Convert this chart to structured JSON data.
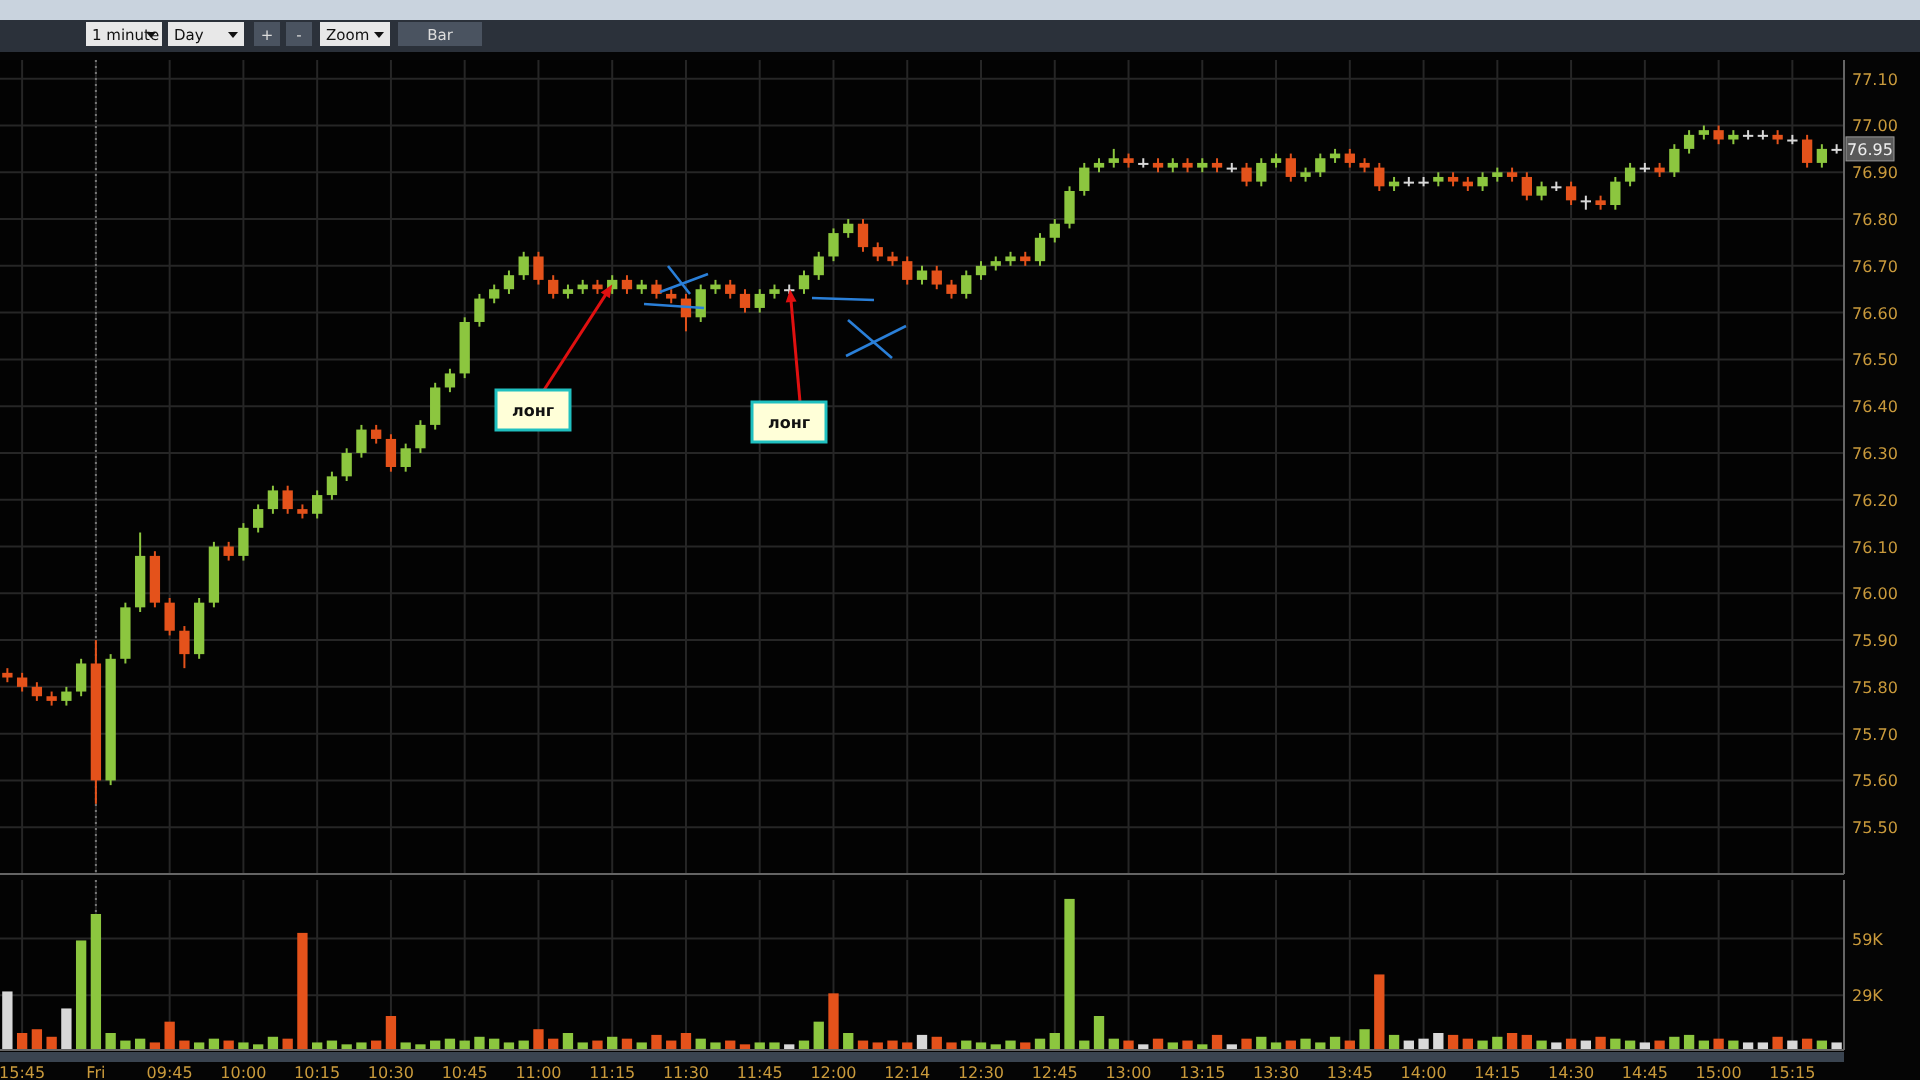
{
  "chart_data": [
    {
      "type": "candlestick",
      "tick_labels": "y",
      "grid": true,
      "categories": [
        null,
        "15:45",
        null,
        null,
        null,
        null,
        "Fri",
        null,
        null,
        null,
        null,
        "09:45",
        null,
        null,
        null,
        null,
        "10:00",
        null,
        null,
        null,
        null,
        "10:15",
        null,
        null,
        null,
        null,
        "10:30",
        null,
        null,
        null,
        null,
        "10:45",
        null,
        null,
        null,
        null,
        "11:00",
        null,
        null,
        null,
        null,
        "11:15",
        null,
        null,
        null,
        null,
        "11:30",
        null,
        null,
        null,
        null,
        "11:45",
        null,
        null,
        null,
        null,
        "12:00",
        null,
        null,
        null,
        null,
        "12:14",
        null,
        null,
        null,
        null,
        "12:30",
        null,
        null,
        null,
        null,
        "12:45",
        null,
        null,
        null,
        null,
        "13:00",
        null,
        null,
        null,
        null,
        "13:15",
        null,
        null,
        null,
        null,
        "13:30",
        null,
        null,
        null,
        null,
        "13:45",
        null,
        null,
        null,
        null,
        "14:00",
        null,
        null,
        null,
        null,
        "14:15",
        null,
        null,
        null,
        null,
        "14:30",
        null,
        null,
        null,
        null,
        "14:45",
        null,
        null,
        null,
        null,
        "15:00",
        null,
        null,
        null,
        null,
        "15:15",
        null,
        null,
        null
      ],
      "ohlc": [
        [
          75.83,
          75.84,
          75.81,
          75.82
        ],
        [
          75.82,
          75.83,
          75.79,
          75.8
        ],
        [
          75.8,
          75.81,
          75.77,
          75.78
        ],
        [
          75.78,
          75.79,
          75.76,
          75.77
        ],
        [
          75.77,
          75.8,
          75.76,
          75.79
        ],
        [
          75.79,
          75.86,
          75.78,
          75.85
        ],
        [
          75.85,
          75.9,
          75.55,
          75.6
        ],
        [
          75.6,
          75.87,
          75.59,
          75.86
        ],
        [
          75.86,
          75.98,
          75.85,
          75.97
        ],
        [
          75.97,
          76.13,
          75.96,
          76.08
        ],
        [
          76.08,
          76.09,
          75.97,
          75.98
        ],
        [
          75.98,
          75.99,
          75.91,
          75.92
        ],
        [
          75.92,
          75.93,
          75.84,
          75.87
        ],
        [
          75.87,
          75.99,
          75.86,
          75.98
        ],
        [
          75.98,
          76.11,
          75.97,
          76.1
        ],
        [
          76.1,
          76.11,
          76.07,
          76.08
        ],
        [
          76.08,
          76.15,
          76.07,
          76.14
        ],
        [
          76.14,
          76.19,
          76.13,
          76.18
        ],
        [
          76.18,
          76.23,
          76.17,
          76.22
        ],
        [
          76.22,
          76.23,
          76.17,
          76.18
        ],
        [
          76.18,
          76.19,
          76.16,
          76.17
        ],
        [
          76.17,
          76.22,
          76.16,
          76.21
        ],
        [
          76.21,
          76.26,
          76.2,
          76.25
        ],
        [
          76.25,
          76.31,
          76.24,
          76.3
        ],
        [
          76.3,
          76.36,
          76.29,
          76.35
        ],
        [
          76.35,
          76.36,
          76.32,
          76.33
        ],
        [
          76.33,
          76.34,
          76.26,
          76.27
        ],
        [
          76.27,
          76.32,
          76.26,
          76.31
        ],
        [
          76.31,
          76.37,
          76.3,
          76.36
        ],
        [
          76.36,
          76.45,
          76.35,
          76.44
        ],
        [
          76.44,
          76.48,
          76.43,
          76.47
        ],
        [
          76.47,
          76.59,
          76.46,
          76.58
        ],
        [
          76.58,
          76.64,
          76.57,
          76.63
        ],
        [
          76.63,
          76.66,
          76.62,
          76.65
        ],
        [
          76.65,
          76.69,
          76.64,
          76.68
        ],
        [
          76.68,
          76.73,
          76.67,
          76.72
        ],
        [
          76.72,
          76.73,
          76.66,
          76.67
        ],
        [
          76.67,
          76.68,
          76.63,
          76.64
        ],
        [
          76.64,
          76.66,
          76.63,
          76.65
        ],
        [
          76.65,
          76.67,
          76.64,
          76.66
        ],
        [
          76.66,
          76.67,
          76.64,
          76.65
        ],
        [
          76.65,
          76.68,
          76.64,
          76.67
        ],
        [
          76.67,
          76.68,
          76.64,
          76.65
        ],
        [
          76.65,
          76.67,
          76.64,
          76.66
        ],
        [
          76.66,
          76.67,
          76.63,
          76.64
        ],
        [
          76.64,
          76.65,
          76.62,
          76.63
        ],
        [
          76.63,
          76.64,
          76.56,
          76.59
        ],
        [
          76.59,
          76.66,
          76.58,
          76.65
        ],
        [
          76.65,
          76.67,
          76.64,
          76.66
        ],
        [
          76.66,
          76.67,
          76.63,
          76.64
        ],
        [
          76.64,
          76.65,
          76.6,
          76.61
        ],
        [
          76.61,
          76.65,
          76.6,
          76.64
        ],
        [
          76.64,
          76.66,
          76.63,
          76.65
        ],
        [
          76.65,
          76.66,
          76.64,
          76.65
        ],
        [
          76.65,
          76.69,
          76.64,
          76.68
        ],
        [
          76.68,
          76.73,
          76.67,
          76.72
        ],
        [
          76.72,
          76.78,
          76.71,
          76.77
        ],
        [
          76.77,
          76.8,
          76.76,
          76.79
        ],
        [
          76.79,
          76.8,
          76.73,
          76.74
        ],
        [
          76.74,
          76.75,
          76.71,
          76.72
        ],
        [
          76.72,
          76.73,
          76.7,
          76.71
        ],
        [
          76.71,
          76.72,
          76.66,
          76.67
        ],
        [
          76.67,
          76.7,
          76.66,
          76.69
        ],
        [
          76.69,
          76.7,
          76.65,
          76.66
        ],
        [
          76.66,
          76.67,
          76.63,
          76.64
        ],
        [
          76.64,
          76.69,
          76.63,
          76.68
        ],
        [
          76.68,
          76.71,
          76.67,
          76.7
        ],
        [
          76.7,
          76.72,
          76.69,
          76.71
        ],
        [
          76.71,
          76.73,
          76.7,
          76.72
        ],
        [
          76.72,
          76.73,
          76.7,
          76.71
        ],
        [
          76.71,
          76.77,
          76.7,
          76.76
        ],
        [
          76.76,
          76.8,
          76.75,
          76.79
        ],
        [
          76.79,
          76.87,
          76.78,
          76.86
        ],
        [
          76.86,
          76.92,
          76.85,
          76.91
        ],
        [
          76.91,
          76.93,
          76.9,
          76.92
        ],
        [
          76.92,
          76.95,
          76.91,
          76.93
        ],
        [
          76.93,
          76.94,
          76.91,
          76.92
        ],
        [
          76.92,
          76.93,
          76.91,
          76.92
        ],
        [
          76.92,
          76.93,
          76.9,
          76.91
        ],
        [
          76.91,
          76.93,
          76.9,
          76.92
        ],
        [
          76.92,
          76.93,
          76.9,
          76.91
        ],
        [
          76.91,
          76.93,
          76.9,
          76.92
        ],
        [
          76.92,
          76.93,
          76.9,
          76.91
        ],
        [
          76.91,
          76.92,
          76.9,
          76.91
        ],
        [
          76.91,
          76.92,
          76.87,
          76.88
        ],
        [
          76.88,
          76.93,
          76.87,
          76.92
        ],
        [
          76.92,
          76.94,
          76.91,
          76.93
        ],
        [
          76.93,
          76.94,
          76.88,
          76.89
        ],
        [
          76.89,
          76.91,
          76.88,
          76.9
        ],
        [
          76.9,
          76.94,
          76.89,
          76.93
        ],
        [
          76.93,
          76.95,
          76.92,
          76.94
        ],
        [
          76.94,
          76.95,
          76.91,
          76.92
        ],
        [
          76.92,
          76.93,
          76.9,
          76.91
        ],
        [
          76.91,
          76.92,
          76.86,
          76.87
        ],
        [
          76.87,
          76.89,
          76.86,
          76.88
        ],
        [
          76.88,
          76.89,
          76.87,
          76.88
        ],
        [
          76.88,
          76.89,
          76.87,
          76.88
        ],
        [
          76.88,
          76.9,
          76.87,
          76.89
        ],
        [
          76.89,
          76.9,
          76.87,
          76.88
        ],
        [
          76.88,
          76.89,
          76.86,
          76.87
        ],
        [
          76.87,
          76.9,
          76.86,
          76.89
        ],
        [
          76.89,
          76.91,
          76.88,
          76.9
        ],
        [
          76.9,
          76.91,
          76.88,
          76.89
        ],
        [
          76.89,
          76.9,
          76.84,
          76.85
        ],
        [
          76.85,
          76.88,
          76.84,
          76.87
        ],
        [
          76.87,
          76.88,
          76.86,
          76.87
        ],
        [
          76.87,
          76.88,
          76.83,
          76.84
        ],
        [
          76.84,
          76.85,
          76.82,
          76.84
        ],
        [
          76.84,
          76.85,
          76.82,
          76.83
        ],
        [
          76.83,
          76.89,
          76.82,
          76.88
        ],
        [
          76.88,
          76.92,
          76.87,
          76.91
        ],
        [
          76.91,
          76.92,
          76.9,
          76.91
        ],
        [
          76.91,
          76.92,
          76.89,
          76.9
        ],
        [
          76.9,
          76.96,
          76.89,
          76.95
        ],
        [
          76.95,
          76.99,
          76.94,
          76.98
        ],
        [
          76.98,
          77.0,
          76.97,
          76.99
        ],
        [
          76.99,
          77.0,
          76.96,
          76.97
        ],
        [
          76.97,
          76.99,
          76.96,
          76.98
        ],
        [
          76.98,
          76.99,
          76.97,
          76.98
        ],
        [
          76.98,
          76.99,
          76.97,
          76.98
        ],
        [
          76.98,
          76.99,
          76.96,
          76.97
        ],
        [
          76.97,
          76.98,
          76.96,
          76.97
        ],
        [
          76.97,
          76.98,
          76.91,
          76.92
        ],
        [
          76.92,
          76.96,
          76.91,
          76.95
        ],
        [
          76.95,
          76.96,
          76.94,
          76.95
        ]
      ],
      "colors": [
        "#e4521b",
        "#e4521b",
        "#e4521b",
        "#e4521b",
        "#8cc63f",
        "#8cc63f",
        "#e4521b",
        "#8cc63f",
        "#8cc63f",
        "#8cc63f",
        "#e4521b",
        "#e4521b",
        "#e4521b",
        "#8cc63f",
        "#8cc63f",
        "#e4521b",
        "#8cc63f",
        "#8cc63f",
        "#8cc63f",
        "#e4521b",
        "#e4521b",
        "#8cc63f",
        "#8cc63f",
        "#8cc63f",
        "#8cc63f",
        "#e4521b",
        "#e4521b",
        "#8cc63f",
        "#8cc63f",
        "#8cc63f",
        "#8cc63f",
        "#8cc63f",
        "#8cc63f",
        "#8cc63f",
        "#8cc63f",
        "#8cc63f",
        "#e4521b",
        "#e4521b",
        "#8cc63f",
        "#8cc63f",
        "#e4521b",
        "#8cc63f",
        "#e4521b",
        "#8cc63f",
        "#e4521b",
        "#e4521b",
        "#e4521b",
        "#8cc63f",
        "#8cc63f",
        "#e4521b",
        "#e4521b",
        "#8cc63f",
        "#8cc63f",
        "#d8d8d8",
        "#8cc63f",
        "#8cc63f",
        "#8cc63f",
        "#8cc63f",
        "#e4521b",
        "#e4521b",
        "#e4521b",
        "#e4521b",
        "#8cc63f",
        "#e4521b",
        "#e4521b",
        "#8cc63f",
        "#8cc63f",
        "#8cc63f",
        "#8cc63f",
        "#e4521b",
        "#8cc63f",
        "#8cc63f",
        "#8cc63f",
        "#8cc63f",
        "#8cc63f",
        "#8cc63f",
        "#e4521b",
        "#d8d8d8",
        "#e4521b",
        "#8cc63f",
        "#e4521b",
        "#8cc63f",
        "#e4521b",
        "#d8d8d8",
        "#e4521b",
        "#8cc63f",
        "#8cc63f",
        "#e4521b",
        "#8cc63f",
        "#8cc63f",
        "#8cc63f",
        "#e4521b",
        "#e4521b",
        "#e4521b",
        "#8cc63f",
        "#d8d8d8",
        "#d8d8d8",
        "#8cc63f",
        "#e4521b",
        "#e4521b",
        "#8cc63f",
        "#8cc63f",
        "#e4521b",
        "#e4521b",
        "#8cc63f",
        "#d8d8d8",
        "#e4521b",
        "#d8d8d8",
        "#e4521b",
        "#8cc63f",
        "#8cc63f",
        "#d8d8d8",
        "#e4521b",
        "#8cc63f",
        "#8cc63f",
        "#8cc63f",
        "#e4521b",
        "#8cc63f",
        "#d8d8d8",
        "#d8d8d8",
        "#e4521b",
        "#d8d8d8",
        "#e4521b",
        "#8cc63f",
        "#d8d8d8"
      ],
      "ylim": [
        75.4,
        77.14
      ],
      "yticks": [
        {
          "value": 75.5,
          "label": "75.50"
        },
        {
          "value": 75.6,
          "label": "75.60"
        },
        {
          "value": 75.7,
          "label": "75.70"
        },
        {
          "value": 75.8,
          "label": "75.80"
        },
        {
          "value": 75.9,
          "label": "75.90"
        },
        {
          "value": 76.0,
          "label": "76.00"
        },
        {
          "value": 76.1,
          "label": "76.10"
        },
        {
          "value": 76.2,
          "label": "76.20"
        },
        {
          "value": 76.3,
          "label": "76.30"
        },
        {
          "value": 76.4,
          "label": "76.40"
        },
        {
          "value": 76.5,
          "label": "76.50"
        },
        {
          "value": 76.6,
          "label": "76.60"
        },
        {
          "value": 76.7,
          "label": "76.70"
        },
        {
          "value": 76.8,
          "label": "76.80"
        },
        {
          "value": 76.9,
          "label": "76.90"
        },
        {
          "value": 77.0,
          "label": "77.00"
        },
        {
          "value": 77.1,
          "label": "77.10"
        }
      ],
      "ref_lines": [
        {
          "axis": "x",
          "value": "Fri",
          "line_style": "dotted"
        }
      ],
      "annotations": [
        "1 minute",
        "Day",
        "+",
        "-",
        "Zoom",
        "Bar",
        {
          "text": "лонг",
          "x": "11:15",
          "y": 76.66
        },
        {
          "text": "лонг",
          "y": 76.65
        },
        {
          "text": "76.95",
          "y": 76.95
        }
      ]
    },
    {
      "type": "bar",
      "grid": true,
      "categories": [
        null,
        "15:45",
        null,
        null,
        null,
        null,
        "Fri",
        null,
        null,
        null,
        null,
        "09:45",
        null,
        null,
        null,
        null,
        "10:00",
        null,
        null,
        null,
        null,
        "10:15",
        null,
        null,
        null,
        null,
        "10:30",
        null,
        null,
        null,
        null,
        "10:45",
        null,
        null,
        null,
        null,
        "11:00",
        null,
        null,
        null,
        null,
        "11:15",
        null,
        null,
        null,
        null,
        "11:30",
        null,
        null,
        null,
        null,
        "11:45",
        null,
        null,
        null,
        null,
        "12:00",
        null,
        null,
        null,
        null,
        "12:14",
        null,
        null,
        null,
        null,
        "12:30",
        null,
        null,
        null,
        null,
        "12:45",
        null,
        null,
        null,
        null,
        "13:00",
        null,
        null,
        null,
        null,
        "13:15",
        null,
        null,
        null,
        null,
        "13:30",
        null,
        null,
        null,
        null,
        "13:45",
        null,
        null,
        null,
        null,
        "14:00",
        null,
        null,
        null,
        null,
        "14:15",
        null,
        null,
        null,
        null,
        "14:30",
        null,
        null,
        null,
        null,
        "14:45",
        null,
        null,
        null,
        null,
        "15:00",
        null,
        null,
        null,
        null,
        "15:15",
        null,
        null,
        null
      ],
      "values": [
        31000,
        9000,
        11000,
        7000,
        22000,
        58000,
        72000,
        9000,
        5000,
        6000,
        4000,
        15000,
        5000,
        4000,
        6000,
        5000,
        4000,
        3000,
        7000,
        6000,
        62000,
        4000,
        5000,
        3000,
        4000,
        5000,
        18000,
        4000,
        3000,
        5000,
        6000,
        5000,
        7000,
        6000,
        4000,
        5000,
        11000,
        6000,
        9000,
        4000,
        5000,
        7000,
        6000,
        4000,
        8000,
        5000,
        9000,
        6000,
        4000,
        5000,
        3000,
        4000,
        4000,
        3000,
        5000,
        15000,
        30000,
        9000,
        5000,
        4000,
        5000,
        4000,
        8000,
        7000,
        4000,
        5000,
        4000,
        3000,
        5000,
        4000,
        6000,
        9000,
        80000,
        5000,
        18000,
        6000,
        5000,
        3000,
        6000,
        4000,
        5000,
        3000,
        8000,
        3000,
        6000,
        7000,
        4000,
        5000,
        6000,
        4000,
        7000,
        5000,
        11000,
        40000,
        8000,
        5000,
        6000,
        9000,
        8000,
        6000,
        5000,
        7000,
        9000,
        8000,
        5000,
        4000,
        6000,
        5000,
        7000,
        6000,
        5000,
        4000,
        5000,
        7000,
        8000,
        5000,
        6000,
        5000,
        4000,
        4000,
        7000,
        5000,
        6000,
        5000,
        4000
      ],
      "colors": [
        "#d8d8d8",
        "#e4521b",
        "#e4521b",
        "#e4521b",
        "#d8d8d8",
        "#8cc63f",
        "#8cc63f",
        "#8cc63f",
        "#8cc63f",
        "#8cc63f",
        "#e4521b",
        "#e4521b",
        "#e4521b",
        "#8cc63f",
        "#8cc63f",
        "#e4521b",
        "#8cc63f",
        "#8cc63f",
        "#8cc63f",
        "#e4521b",
        "#e4521b",
        "#8cc63f",
        "#8cc63f",
        "#8cc63f",
        "#8cc63f",
        "#e4521b",
        "#e4521b",
        "#8cc63f",
        "#8cc63f",
        "#8cc63f",
        "#8cc63f",
        "#8cc63f",
        "#8cc63f",
        "#8cc63f",
        "#8cc63f",
        "#8cc63f",
        "#e4521b",
        "#e4521b",
        "#8cc63f",
        "#8cc63f",
        "#e4521b",
        "#8cc63f",
        "#e4521b",
        "#8cc63f",
        "#e4521b",
        "#e4521b",
        "#e4521b",
        "#8cc63f",
        "#8cc63f",
        "#e4521b",
        "#e4521b",
        "#8cc63f",
        "#8cc63f",
        "#d8d8d8",
        "#8cc63f",
        "#8cc63f",
        "#e4521b",
        "#8cc63f",
        "#e4521b",
        "#e4521b",
        "#e4521b",
        "#e4521b",
        "#d8d8d8",
        "#e4521b",
        "#e4521b",
        "#8cc63f",
        "#8cc63f",
        "#8cc63f",
        "#8cc63f",
        "#e4521b",
        "#8cc63f",
        "#8cc63f",
        "#8cc63f",
        "#8cc63f",
        "#8cc63f",
        "#8cc63f",
        "#e4521b",
        "#d8d8d8",
        "#e4521b",
        "#8cc63f",
        "#e4521b",
        "#8cc63f",
        "#e4521b",
        "#d8d8d8",
        "#e4521b",
        "#8cc63f",
        "#8cc63f",
        "#e4521b",
        "#8cc63f",
        "#8cc63f",
        "#8cc63f",
        "#e4521b",
        "#8cc63f",
        "#e4521b",
        "#8cc63f",
        "#d8d8d8",
        "#d8d8d8",
        "#d8d8d8",
        "#e4521b",
        "#e4521b",
        "#8cc63f",
        "#8cc63f",
        "#e4521b",
        "#e4521b",
        "#8cc63f",
        "#d8d8d8",
        "#e4521b",
        "#d8d8d8",
        "#e4521b",
        "#8cc63f",
        "#8cc63f",
        "#d8d8d8",
        "#e4521b",
        "#8cc63f",
        "#8cc63f",
        "#8cc63f",
        "#e4521b",
        "#8cc63f",
        "#d8d8d8",
        "#d8d8d8",
        "#e4521b",
        "#d8d8d8",
        "#e4521b",
        "#8cc63f",
        "#d8d8d8"
      ],
      "ylim": [
        0,
        90000
      ],
      "yticks": [
        {
          "value": 29000,
          "label": "29K"
        },
        {
          "value": 59000,
          "label": "59K"
        }
      ],
      "ref_lines": [
        {
          "axis": "x",
          "value": "Fri",
          "line_style": "dotted"
        }
      ]
    }
  ]
}
